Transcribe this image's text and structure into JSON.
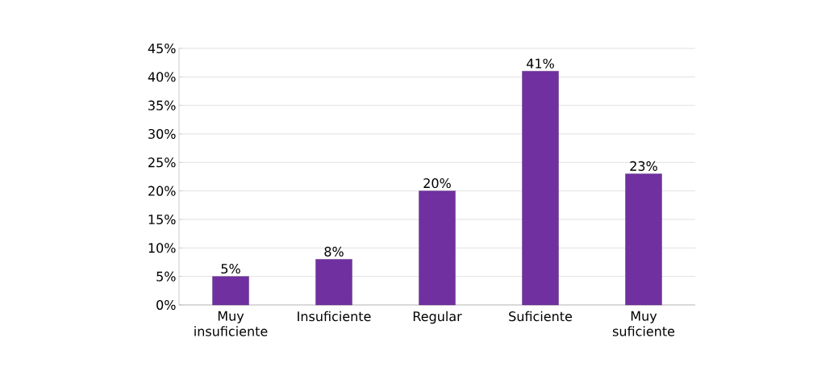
{
  "chart_data": {
    "type": "bar",
    "categories": [
      "Muy insuficiente",
      "Insuficiente",
      "Regular",
      "Suficiente",
      "Muy suficiente"
    ],
    "values": [
      5,
      8,
      20,
      41,
      23
    ],
    "value_labels": [
      "5%",
      "8%",
      "20%",
      "41%",
      "23%"
    ],
    "color": "#7030a0",
    "ylim": [
      0,
      45
    ],
    "yticks": [
      {
        "value": 0,
        "label": "0%"
      },
      {
        "value": 5,
        "label": "5%"
      },
      {
        "value": 10,
        "label": "10%"
      },
      {
        "value": 15,
        "label": "15%"
      },
      {
        "value": 20,
        "label": "20%"
      },
      {
        "value": 25,
        "label": "25%"
      },
      {
        "value": 30,
        "label": "30%"
      },
      {
        "value": 35,
        "label": "35%"
      },
      {
        "value": 40,
        "label": "40%"
      },
      {
        "value": 45,
        "label": "45%"
      }
    ],
    "grid": "y"
  }
}
